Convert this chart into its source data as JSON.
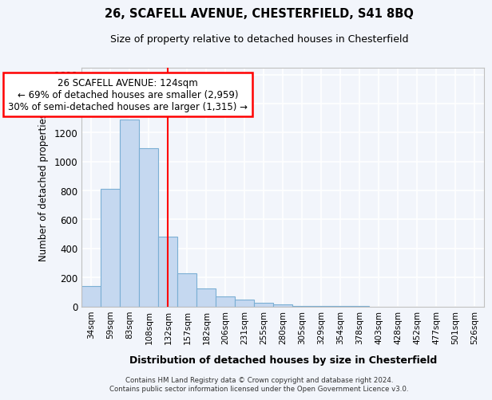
{
  "title_line1": "26, SCAFELL AVENUE, CHESTERFIELD, S41 8BQ",
  "title_line2": "Size of property relative to detached houses in Chesterfield",
  "xlabel": "Distribution of detached houses by size in Chesterfield",
  "ylabel": "Number of detached properties",
  "bar_color": "#c5d8f0",
  "bar_edge_color": "#7bafd4",
  "categories": [
    "34sqm",
    "59sqm",
    "83sqm",
    "108sqm",
    "132sqm",
    "157sqm",
    "182sqm",
    "206sqm",
    "231sqm",
    "255sqm",
    "280sqm",
    "305sqm",
    "329sqm",
    "354sqm",
    "378sqm",
    "403sqm",
    "428sqm",
    "452sqm",
    "477sqm",
    "501sqm",
    "526sqm"
  ],
  "values": [
    140,
    810,
    1290,
    1090,
    480,
    230,
    125,
    70,
    48,
    25,
    15,
    5,
    3,
    2,
    1,
    0,
    0,
    0,
    0,
    0,
    0
  ],
  "ylim": [
    0,
    1650
  ],
  "yticks": [
    0,
    200,
    400,
    600,
    800,
    1000,
    1200,
    1400,
    1600
  ],
  "red_line_x": 4.0,
  "annotation_text": "26 SCAFELL AVENUE: 124sqm\n← 69% of detached houses are smaller (2,959)\n30% of semi-detached houses are larger (1,315) →",
  "footer_text": "Contains HM Land Registry data © Crown copyright and database right 2024.\nContains public sector information licensed under the Open Government Licence v3.0.",
  "bg_color": "#f2f5fb",
  "plot_bg_color": "#f2f5fb",
  "grid_color": "#ffffff"
}
